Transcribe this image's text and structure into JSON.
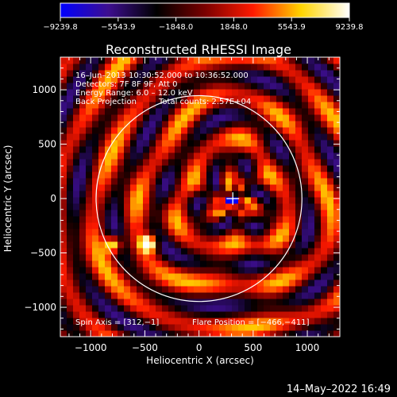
{
  "colorbar": {
    "ticks": [
      "−9239.8",
      "−5543.9",
      "−1848.0",
      "1848.0",
      "5543.9",
      "9239.8"
    ],
    "colormap": [
      "#0000ff",
      "#3d0e8f",
      "#000000",
      "#7a0000",
      "#ff1a00",
      "#ffd400",
      "#ffffff"
    ]
  },
  "header": {
    "title": "Reconstructed RHESSI Image",
    "info_lines": [
      "16–Jun–2013 10:30:52.000 to 10:36:52.000",
      "Detectors: 7F 8F 9F, Att 0",
      "Energy Range: 6.0 – 12.0 keV"
    ],
    "method": "Back Projection",
    "total_counts": "Total counts: 2.57E+04"
  },
  "footer": {
    "spin_axis": "Spin Axis = [312,−1]",
    "flare_position": "Flare Position = [−466,−411]",
    "timestamp": "14–May–2022 16:49"
  },
  "chart_data": {
    "type": "heatmap",
    "title": "Reconstructed RHESSI Image",
    "xlabel": "Heliocentric X (arcsec)",
    "ylabel": "Heliocentric Y (arcsec)",
    "xlim": [
      -1280,
      1300
    ],
    "ylim": [
      -1270,
      1300
    ],
    "xticks": [
      -1000,
      -500,
      0,
      500,
      1000
    ],
    "xtick_labels": [
      "−1000",
      "−500",
      "0",
      "500",
      "1000"
    ],
    "yticks": [
      -1000,
      -500,
      0,
      500,
      1000
    ],
    "ytick_labels": [
      "−1000",
      "−500",
      "0",
      "500",
      "1000"
    ],
    "value_range": [
      -9239.8,
      9239.8
    ],
    "solar_limb": {
      "center": [
        0,
        0
      ],
      "radius": 950
    },
    "spin_axis_marker": [
      312,
      -1
    ],
    "bright_sources": [
      {
        "x": -466,
        "y": -411,
        "value": 9239.8
      },
      {
        "x": -790,
        "y": -420,
        "value": 8000
      }
    ],
    "spin_axis_value": -9239.8
  }
}
